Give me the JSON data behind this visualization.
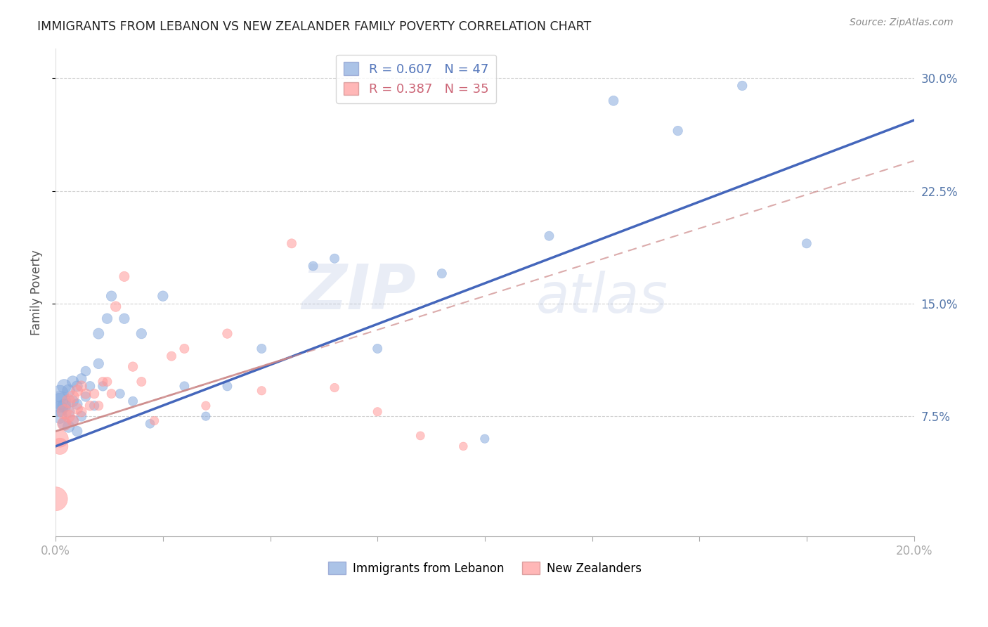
{
  "title": "IMMIGRANTS FROM LEBANON VS NEW ZEALANDER FAMILY POVERTY CORRELATION CHART",
  "source": "Source: ZipAtlas.com",
  "ylabel": "Family Poverty",
  "xlim": [
    0.0,
    0.2
  ],
  "ylim": [
    -0.005,
    0.32
  ],
  "blue_color": "#88AADD",
  "pink_color": "#FF9999",
  "trendline_blue": "#4466BB",
  "trendline_pink": "#CC8888",
  "legend_R_blue": "0.607",
  "legend_N_blue": "47",
  "legend_R_pink": "0.387",
  "legend_N_pink": "35",
  "background_color": "#FFFFFF",
  "grid_color": "#CCCCCC",
  "watermark_zip": "ZIP",
  "watermark_atlas": "atlas",
  "blue_points_x": [
    0.001,
    0.001,
    0.001,
    0.001,
    0.002,
    0.002,
    0.002,
    0.003,
    0.003,
    0.003,
    0.004,
    0.004,
    0.004,
    0.005,
    0.005,
    0.005,
    0.006,
    0.006,
    0.007,
    0.007,
    0.008,
    0.009,
    0.01,
    0.01,
    0.011,
    0.012,
    0.013,
    0.015,
    0.016,
    0.018,
    0.02,
    0.022,
    0.025,
    0.03,
    0.035,
    0.04,
    0.048,
    0.06,
    0.065,
    0.075,
    0.09,
    0.1,
    0.115,
    0.13,
    0.145,
    0.16,
    0.175
  ],
  "blue_points_y": [
    0.09,
    0.085,
    0.08,
    0.075,
    0.095,
    0.082,
    0.07,
    0.092,
    0.078,
    0.068,
    0.098,
    0.085,
    0.072,
    0.095,
    0.083,
    0.065,
    0.1,
    0.075,
    0.105,
    0.088,
    0.095,
    0.082,
    0.13,
    0.11,
    0.095,
    0.14,
    0.155,
    0.09,
    0.14,
    0.085,
    0.13,
    0.07,
    0.155,
    0.095,
    0.075,
    0.095,
    0.12,
    0.175,
    0.18,
    0.12,
    0.17,
    0.06,
    0.195,
    0.285,
    0.265,
    0.295,
    0.19
  ],
  "blue_sizes": [
    300,
    280,
    250,
    220,
    200,
    180,
    160,
    160,
    150,
    140,
    140,
    130,
    125,
    120,
    115,
    110,
    110,
    105,
    100,
    100,
    100,
    95,
    120,
    110,
    95,
    110,
    110,
    90,
    110,
    90,
    110,
    85,
    110,
    90,
    80,
    90,
    90,
    90,
    90,
    90,
    90,
    80,
    90,
    100,
    95,
    95,
    90
  ],
  "pink_points_x": [
    0.0,
    0.001,
    0.001,
    0.002,
    0.002,
    0.003,
    0.003,
    0.004,
    0.004,
    0.005,
    0.005,
    0.006,
    0.006,
    0.007,
    0.008,
    0.009,
    0.01,
    0.011,
    0.012,
    0.013,
    0.014,
    0.016,
    0.018,
    0.02,
    0.023,
    0.027,
    0.03,
    0.035,
    0.04,
    0.048,
    0.055,
    0.065,
    0.075,
    0.085,
    0.095
  ],
  "pink_points_y": [
    0.02,
    0.06,
    0.055,
    0.078,
    0.07,
    0.085,
    0.075,
    0.088,
    0.072,
    0.092,
    0.08,
    0.095,
    0.078,
    0.09,
    0.082,
    0.09,
    0.082,
    0.098,
    0.098,
    0.09,
    0.148,
    0.168,
    0.108,
    0.098,
    0.072,
    0.115,
    0.12,
    0.082,
    0.13,
    0.092,
    0.19,
    0.094,
    0.078,
    0.062,
    0.055
  ],
  "pink_sizes": [
    600,
    300,
    280,
    220,
    200,
    180,
    160,
    150,
    140,
    135,
    125,
    120,
    112,
    105,
    100,
    95,
    92,
    90,
    90,
    88,
    110,
    105,
    95,
    90,
    80,
    90,
    90,
    80,
    95,
    80,
    90,
    80,
    78,
    75,
    72
  ],
  "extra_blue_large_x": [
    0.001
  ],
  "extra_blue_large_y": [
    0.085
  ],
  "extra_blue_large_s": [
    500
  ]
}
